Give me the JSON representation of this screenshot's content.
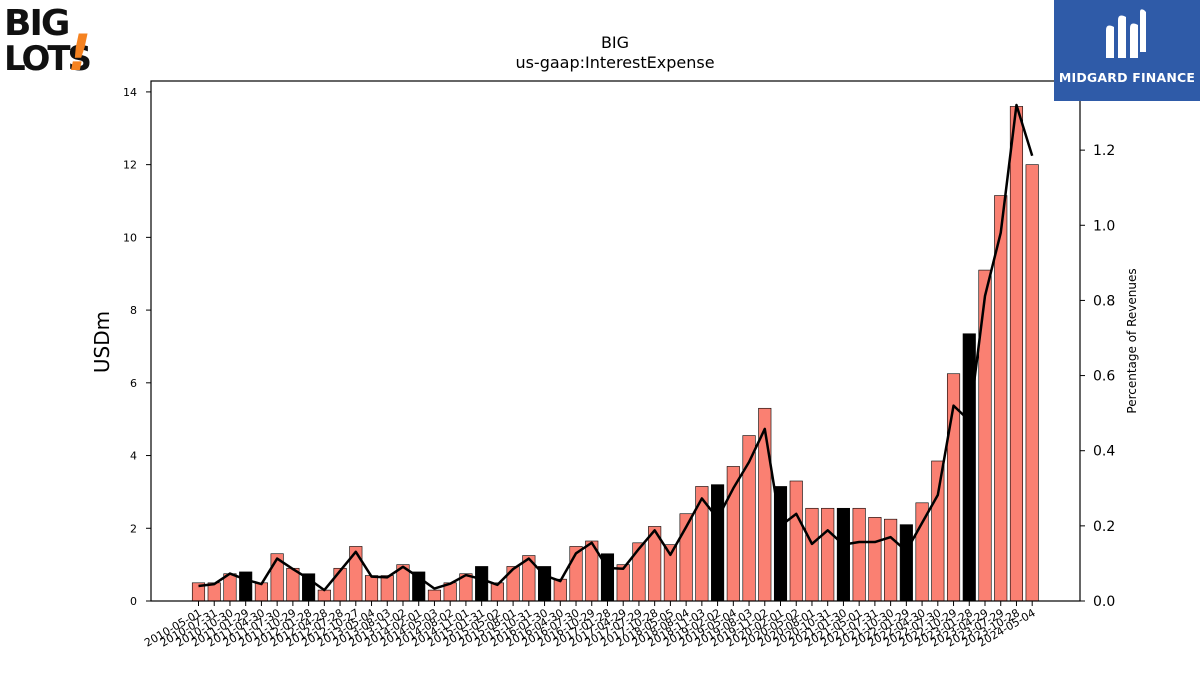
{
  "header": {
    "company": "BIG",
    "metric": "us-gaap:InterestExpense"
  },
  "logos": {
    "left_line1": "BIG",
    "left_line2": "LOTS",
    "left_mark": "!",
    "right_text": "MIDGARD FINANCE"
  },
  "colors": {
    "bar_default": "#fa8072",
    "bar_highlight": "#000000",
    "line": "#000000",
    "brand_blue": "#2f5ba8",
    "biglots_orange": "#f58220"
  },
  "chart_data": {
    "type": "bar",
    "title": "BIG",
    "subtitle": "us-gaap:InterestExpense",
    "ylabel": "USDm",
    "y2label": "Percentage of Revenues",
    "ylim": [
      0,
      14.3
    ],
    "y2lim": [
      0,
      1.384
    ],
    "yticks": [
      0,
      2,
      4,
      6,
      8,
      10,
      12,
      14
    ],
    "y2ticks": [
      "0.0",
      "0.2",
      "0.4",
      "0.6",
      "0.8",
      "1.0",
      "1.2"
    ],
    "categories": [
      "2010-05-01",
      "2010-07-31",
      "2010-10-30",
      "2011-01-29",
      "2011-04-30",
      "2011-07-30",
      "2011-10-29",
      "2012-01-28",
      "2012-04-28",
      "2012-07-28",
      "2012-10-27",
      "2013-05-04",
      "2013-08-03",
      "2013-11-02",
      "2014-02-01",
      "2014-05-03",
      "2014-08-02",
      "2014-11-01",
      "2015-01-31",
      "2015-05-02",
      "2015-08-01",
      "2015-10-31",
      "2016-01-30",
      "2016-04-30",
      "2016-07-30",
      "2016-10-29",
      "2017-01-28",
      "2017-04-29",
      "2017-07-29",
      "2017-10-28",
      "2018-05-05",
      "2018-08-04",
      "2018-11-03",
      "2019-02-02",
      "2019-05-04",
      "2019-08-03",
      "2019-11-02",
      "2020-02-01",
      "2020-05-02",
      "2020-08-01",
      "2020-10-31",
      "2021-01-30",
      "2021-05-01",
      "2021-07-31",
      "2021-10-30",
      "2022-01-29",
      "2022-04-30",
      "2022-07-30",
      "2022-10-29",
      "2023-01-28",
      "2023-04-29",
      "2023-07-29",
      "2023-10-28",
      "2024-05-04"
    ],
    "tick_labels": [
      "2010-05-01",
      "2010-07-31",
      "2010-10-30",
      "2011-01-29",
      "2011-04-30",
      "2011-07-30",
      "2011-10-29",
      "2012-01-28",
      "2012-04-28",
      "2012-07-28",
      "2012-10-27",
      "2013-05-04",
      "2013-08-03",
      "2013-11-02",
      "2014-02-01",
      "2014-05-03",
      "2014-08-02",
      "2014-11-01",
      "2015-01-31",
      "2015-05-02",
      "2015-08-01",
      "2015-10-31",
      "2016-01-30",
      "2016-04-30",
      "2016-07-30",
      "2016-10-29",
      "2017-01-28",
      "2017-04-29",
      "2017-07-29",
      "2017-10-28",
      "2018-05-05",
      "2018-08-04",
      "2018-11-03",
      "2019-02-02",
      "2019-05-04",
      "2019-08-03",
      "2019-11-02",
      "2020-02-01",
      "2020-05-02",
      "2020-08-01",
      "2020-10-31",
      "2021-01-30",
      "2021-05-01",
      "2021-07-31",
      "2021-10-30",
      "2022-01-29",
      "2022-04-30",
      "2022-07-30",
      "2022-10-29",
      "2023-01-28",
      "2023-04-29",
      "2023-07-29",
      "2023-10-28",
      "2024-05-04"
    ],
    "series": [
      {
        "axis": "left",
        "kind": "bar",
        "values": [
          0.5,
          0.5,
          0.75,
          0.8,
          0.5,
          1.3,
          0.9,
          0.75,
          0.3,
          0.9,
          1.5,
          0.7,
          0.7,
          1.0,
          0.8,
          0.3,
          0.5,
          0.75,
          0.95,
          0.5,
          0.95,
          1.25,
          0.95,
          0.6,
          1.5,
          1.65,
          1.3,
          1.0,
          1.6,
          2.05,
          1.55,
          2.4,
          3.15,
          3.2,
          3.7,
          4.55,
          5.3,
          3.15,
          3.3,
          2.55,
          2.55,
          2.55,
          2.55,
          2.3,
          2.25,
          2.1,
          2.7,
          3.85,
          6.25,
          7.35,
          9.1,
          11.15,
          13.6,
          12.0
        ],
        "highlight": [
          false,
          false,
          false,
          true,
          false,
          false,
          false,
          true,
          false,
          false,
          false,
          false,
          false,
          false,
          true,
          false,
          false,
          false,
          true,
          false,
          false,
          false,
          true,
          false,
          false,
          false,
          true,
          false,
          false,
          false,
          false,
          false,
          false,
          true,
          false,
          false,
          false,
          true,
          false,
          false,
          false,
          true,
          false,
          false,
          false,
          true,
          false,
          false,
          false,
          true,
          false,
          false,
          false,
          false
        ]
      },
      {
        "axis": "right",
        "kind": "line",
        "values": [
          0.04,
          0.045,
          0.073,
          0.057,
          0.045,
          0.113,
          0.085,
          0.059,
          0.029,
          0.08,
          0.131,
          0.065,
          0.063,
          0.091,
          0.063,
          0.033,
          0.046,
          0.069,
          0.058,
          0.043,
          0.085,
          0.113,
          0.068,
          0.053,
          0.127,
          0.155,
          0.088,
          0.086,
          0.139,
          0.188,
          0.123,
          0.197,
          0.273,
          0.22,
          0.3,
          0.37,
          0.458,
          0.2,
          0.232,
          0.152,
          0.188,
          0.15,
          0.157,
          0.157,
          0.17,
          0.133,
          0.208,
          0.282,
          0.52,
          0.48,
          0.812,
          0.98,
          1.32,
          1.185
        ]
      }
    ]
  }
}
